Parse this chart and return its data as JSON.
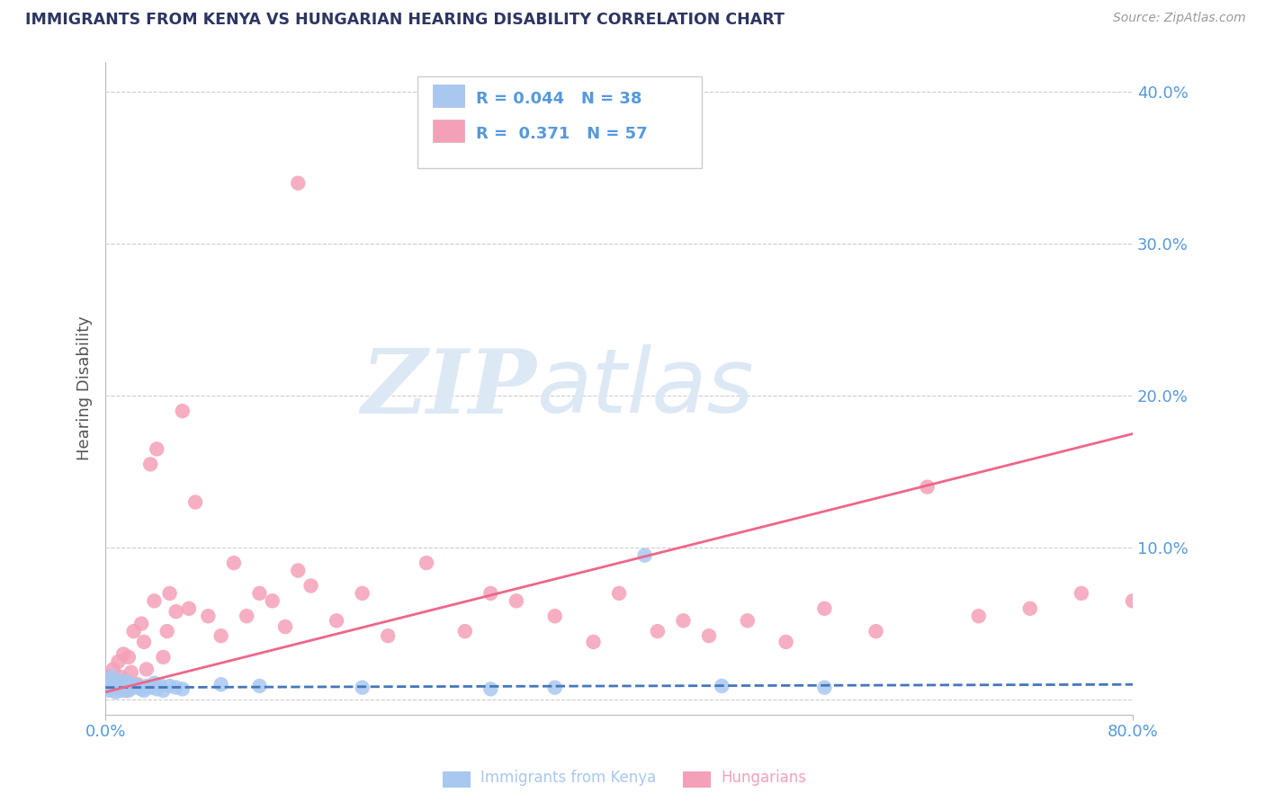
{
  "title": "IMMIGRANTS FROM KENYA VS HUNGARIAN HEARING DISABILITY CORRELATION CHART",
  "source": "Source: ZipAtlas.com",
  "ylabel_label": "Hearing Disability",
  "xlim": [
    0.0,
    0.8
  ],
  "ylim": [
    -0.01,
    0.42
  ],
  "blue_R": "0.044",
  "blue_N": "38",
  "pink_R": "0.371",
  "pink_N": "57",
  "blue_color": "#a8c8f0",
  "pink_color": "#f4a0b8",
  "blue_line_color": "#4477bb",
  "pink_line_color": "#ee6688",
  "title_color": "#2d3561",
  "axis_color": "#5599dd",
  "grid_color": "#cccccc",
  "watermark_color": "#dde8f5",
  "legend_label_blue": "Immigrants from Kenya",
  "legend_label_pink": "Hungarians",
  "blue_line_x0": 0.0,
  "blue_line_y0": 0.008,
  "blue_line_x1": 0.8,
  "blue_line_y1": 0.01,
  "pink_line_x0": 0.0,
  "pink_line_y0": 0.005,
  "pink_line_x1": 0.8,
  "pink_line_y1": 0.175,
  "blue_scatter_x": [
    0.001,
    0.002,
    0.003,
    0.004,
    0.005,
    0.006,
    0.007,
    0.008,
    0.009,
    0.01,
    0.011,
    0.012,
    0.013,
    0.015,
    0.016,
    0.018,
    0.02,
    0.022,
    0.025,
    0.028,
    0.03,
    0.032,
    0.035,
    0.038,
    0.04,
    0.042,
    0.045,
    0.05,
    0.055,
    0.06,
    0.09,
    0.12,
    0.2,
    0.35,
    0.42,
    0.48,
    0.56,
    0.3
  ],
  "blue_scatter_y": [
    0.008,
    0.012,
    0.006,
    0.01,
    0.015,
    0.008,
    0.012,
    0.005,
    0.01,
    0.008,
    0.012,
    0.006,
    0.01,
    0.008,
    0.012,
    0.006,
    0.01,
    0.008,
    0.009,
    0.007,
    0.006,
    0.009,
    0.008,
    0.011,
    0.007,
    0.01,
    0.006,
    0.009,
    0.008,
    0.007,
    0.01,
    0.009,
    0.008,
    0.008,
    0.095,
    0.009,
    0.008,
    0.007
  ],
  "pink_scatter_x": [
    0.002,
    0.004,
    0.006,
    0.008,
    0.01,
    0.012,
    0.014,
    0.016,
    0.018,
    0.02,
    0.022,
    0.025,
    0.028,
    0.03,
    0.032,
    0.035,
    0.038,
    0.04,
    0.045,
    0.048,
    0.05,
    0.055,
    0.06,
    0.065,
    0.07,
    0.08,
    0.09,
    0.1,
    0.11,
    0.12,
    0.13,
    0.14,
    0.15,
    0.16,
    0.18,
    0.2,
    0.22,
    0.25,
    0.28,
    0.3,
    0.32,
    0.35,
    0.38,
    0.4,
    0.43,
    0.45,
    0.47,
    0.5,
    0.53,
    0.56,
    0.6,
    0.64,
    0.68,
    0.72,
    0.76,
    0.8,
    0.15
  ],
  "pink_scatter_y": [
    0.015,
    0.012,
    0.02,
    0.008,
    0.025,
    0.015,
    0.03,
    0.006,
    0.028,
    0.018,
    0.045,
    0.01,
    0.05,
    0.038,
    0.02,
    0.155,
    0.065,
    0.165,
    0.028,
    0.045,
    0.07,
    0.058,
    0.19,
    0.06,
    0.13,
    0.055,
    0.042,
    0.09,
    0.055,
    0.07,
    0.065,
    0.048,
    0.085,
    0.075,
    0.052,
    0.07,
    0.042,
    0.09,
    0.045,
    0.07,
    0.065,
    0.055,
    0.038,
    0.07,
    0.045,
    0.052,
    0.042,
    0.052,
    0.038,
    0.06,
    0.045,
    0.14,
    0.055,
    0.06,
    0.07,
    0.065,
    0.34
  ]
}
